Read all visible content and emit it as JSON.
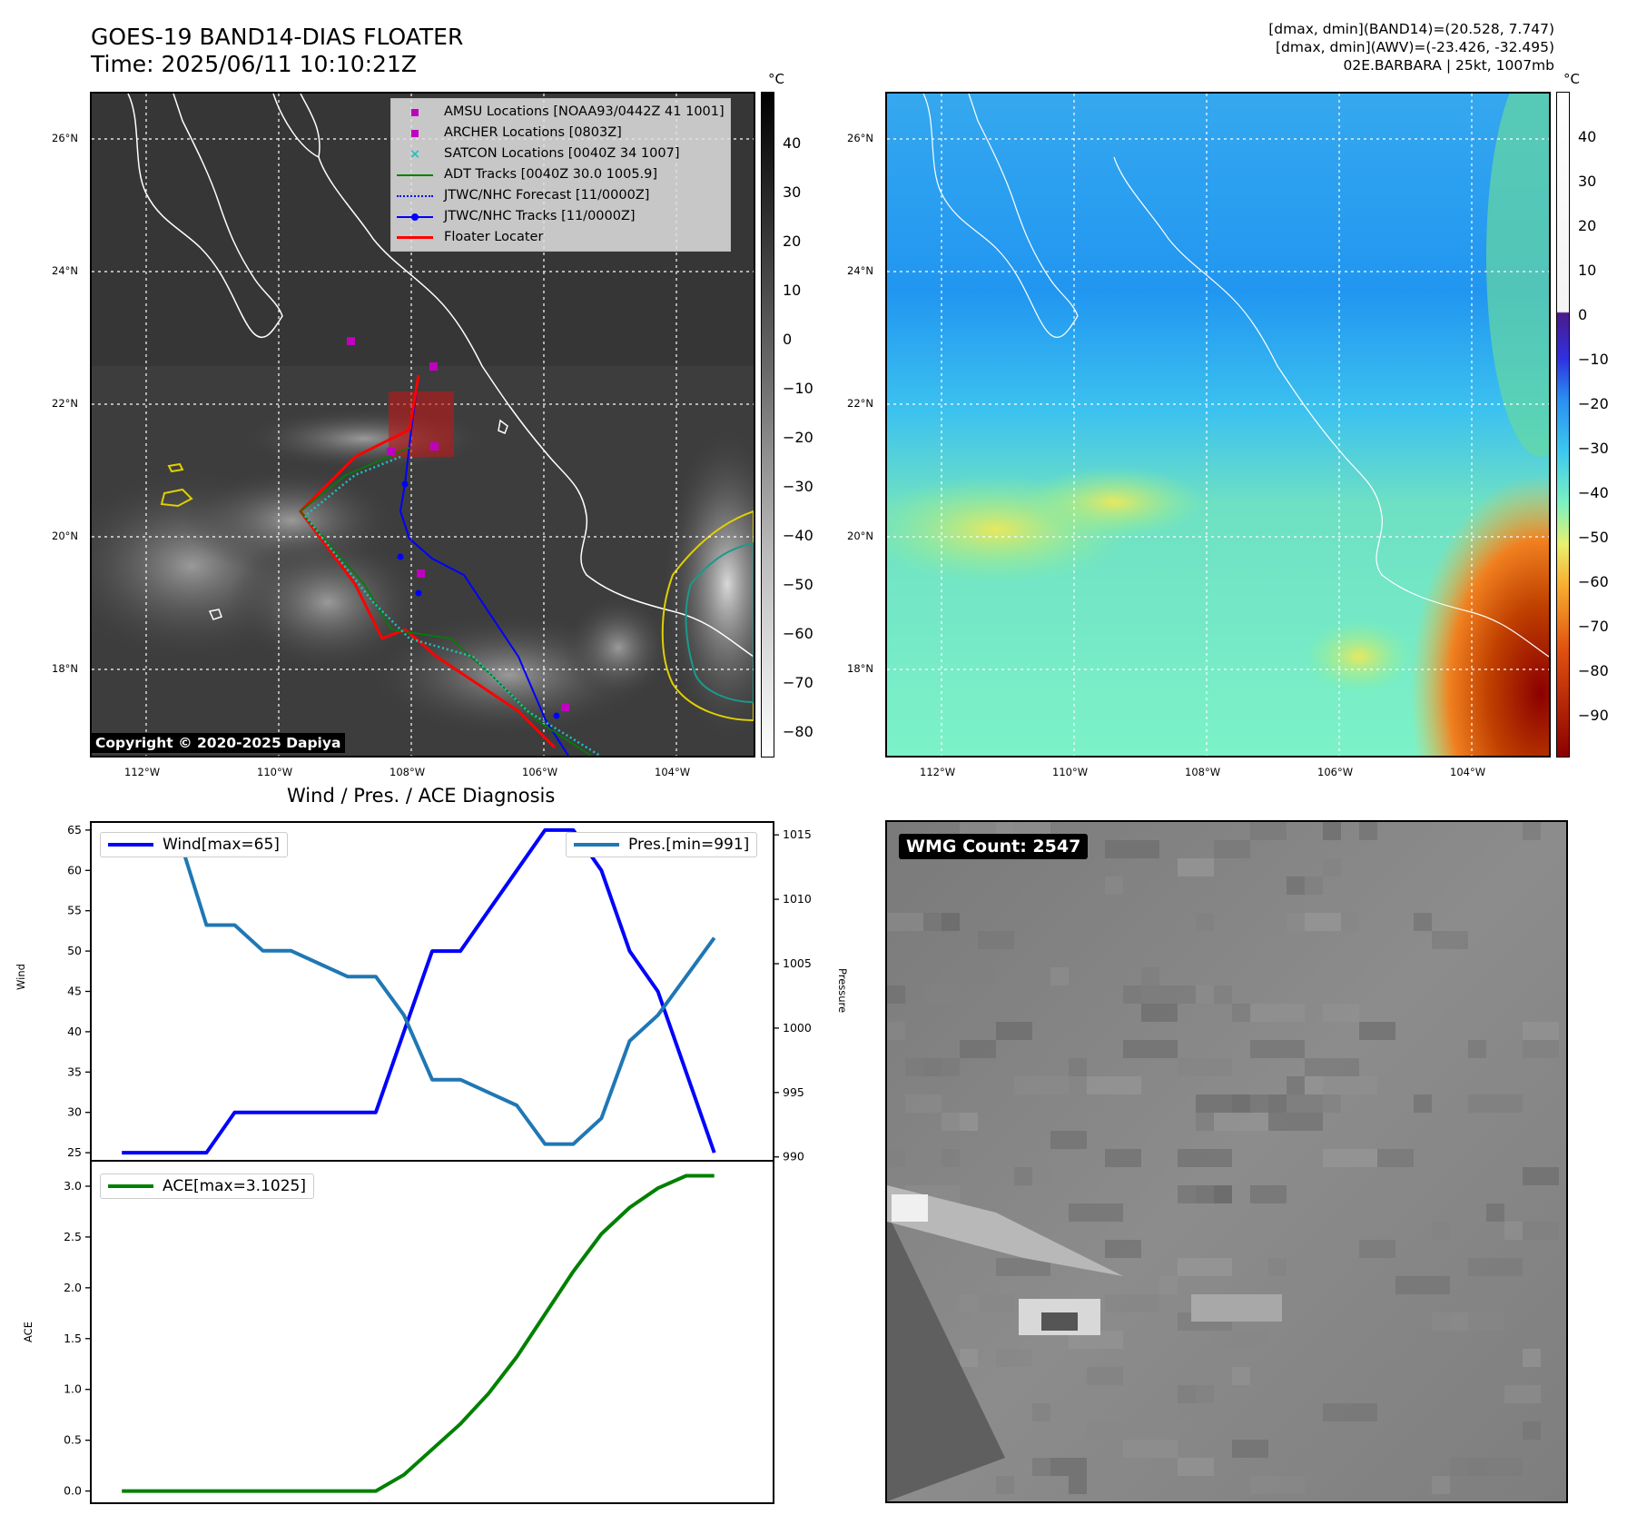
{
  "header": {
    "title_line1": "GOES-19 BAND14-DIAS FLOATER",
    "title_line2": "Time: 2025/06/11 10:10:21Z",
    "stats_line1": "[dmax, dmin](BAND14)=(20.528, 7.747)",
    "stats_line2": "[dmax, dmin](AWV)=(-23.426, -32.495)",
    "stats_line3": "02E.BARBARA | 25kt, 1007mb"
  },
  "map": {
    "lat_labels": [
      "26°N",
      "24°N",
      "22°N",
      "20°N",
      "18°N"
    ],
    "lon_labels": [
      "112°W",
      "110°W",
      "108°W",
      "106°W",
      "104°W"
    ],
    "copyright": "Copyright © 2020-2025 Dapiya",
    "legend": [
      {
        "label": "AMSU Locations [NOAA93/0442Z 41 1001]",
        "color": "#c000c0",
        "symbol": "square"
      },
      {
        "label": "ARCHER Locations [0803Z]",
        "color": "#c000c0",
        "symbol": "square"
      },
      {
        "label": "SATCON Locations [0040Z 34 1007]",
        "color": "#20c0c0",
        "symbol": "x"
      },
      {
        "label": "ADT Tracks [0040Z 30.0 1005.9]",
        "color": "#008000",
        "symbol": "line"
      },
      {
        "label": "JTWC/NHC Forecast [11/0000Z]",
        "color": "#0000ff",
        "symbol": "dotted"
      },
      {
        "label": "JTWC/NHC Tracks [11/0000Z]",
        "color": "#0000ff",
        "symbol": "line-dot"
      },
      {
        "label": "Floater Locater",
        "color": "#ff0000",
        "symbol": "line"
      }
    ]
  },
  "colorbar_left": {
    "unit": "°C",
    "ticks": [
      "40",
      "30",
      "20",
      "10",
      "0",
      "−10",
      "−20",
      "−30",
      "−40",
      "−50",
      "−60",
      "−70",
      "−80"
    ]
  },
  "colorbar_right": {
    "unit": "°C",
    "ticks": [
      "40",
      "30",
      "20",
      "10",
      "0",
      "−10",
      "−20",
      "−30",
      "−40",
      "−50",
      "−60",
      "−70",
      "−80",
      "−90"
    ]
  },
  "diagnosis_title": "Wind / Pres. / ACE Diagnosis",
  "wmg_label": "WMG Count: 2547",
  "chart_data": [
    {
      "type": "line",
      "title": "Wind / Pres. / ACE Diagnosis",
      "ylabel": "Wind",
      "ylim": [
        24,
        66
      ],
      "yticks": [
        "25",
        "30",
        "35",
        "40",
        "45",
        "50",
        "55",
        "60",
        "65"
      ],
      "x": [
        0,
        1,
        2,
        3,
        4,
        5,
        6,
        7,
        8,
        9,
        10,
        11,
        12,
        13,
        14,
        15,
        16,
        17,
        18,
        19,
        20,
        21,
        22
      ],
      "series": [
        {
          "name": "Wind[max=65]",
          "color": "#0000ff",
          "values": [
            25,
            25,
            25,
            25,
            30,
            30,
            30,
            30,
            30,
            30,
            40,
            50,
            50,
            55,
            60,
            65,
            65,
            60,
            50,
            45,
            35,
            25,
            null
          ]
        }
      ]
    },
    {
      "type": "line",
      "ylabel": "Pressure",
      "ylim": [
        989.7,
        1016
      ],
      "yticks": [
        "990",
        "995",
        "1000",
        "1005",
        "1010",
        "1015"
      ],
      "x": [
        0,
        1,
        2,
        3,
        4,
        5,
        6,
        7,
        8,
        9,
        10,
        11,
        12,
        13,
        14,
        15,
        16,
        17,
        18,
        19,
        20,
        21,
        22
      ],
      "series": [
        {
          "name": "Pres.[min=991]",
          "color": "#1f77b4",
          "values": [
            1015,
            1015,
            1015,
            1008,
            1008,
            1006,
            1006,
            1005,
            1004,
            1004,
            1001,
            996,
            996,
            995,
            994,
            991,
            991,
            993,
            999,
            1001,
            1004,
            1007,
            null
          ]
        }
      ]
    },
    {
      "type": "line",
      "ylabel": "ACE",
      "ylim": [
        -0.12,
        3.25
      ],
      "yticks": [
        "0.0",
        "0.5",
        "1.0",
        "1.5",
        "2.0",
        "2.5",
        "3.0"
      ],
      "x": [
        0,
        1,
        2,
        3,
        4,
        5,
        6,
        7,
        8,
        9,
        10,
        11,
        12,
        13,
        14,
        15,
        16,
        17,
        18,
        19,
        20,
        21,
        22
      ],
      "series": [
        {
          "name": "ACE[max=3.1025]",
          "color": "#008000",
          "values": [
            0,
            0,
            0,
            0,
            0,
            0,
            0,
            0,
            0,
            0,
            0.16,
            0.41,
            0.66,
            0.96,
            1.32,
            1.74,
            2.16,
            2.53,
            2.79,
            2.98,
            3.1025,
            3.1025,
            null
          ]
        }
      ]
    }
  ]
}
